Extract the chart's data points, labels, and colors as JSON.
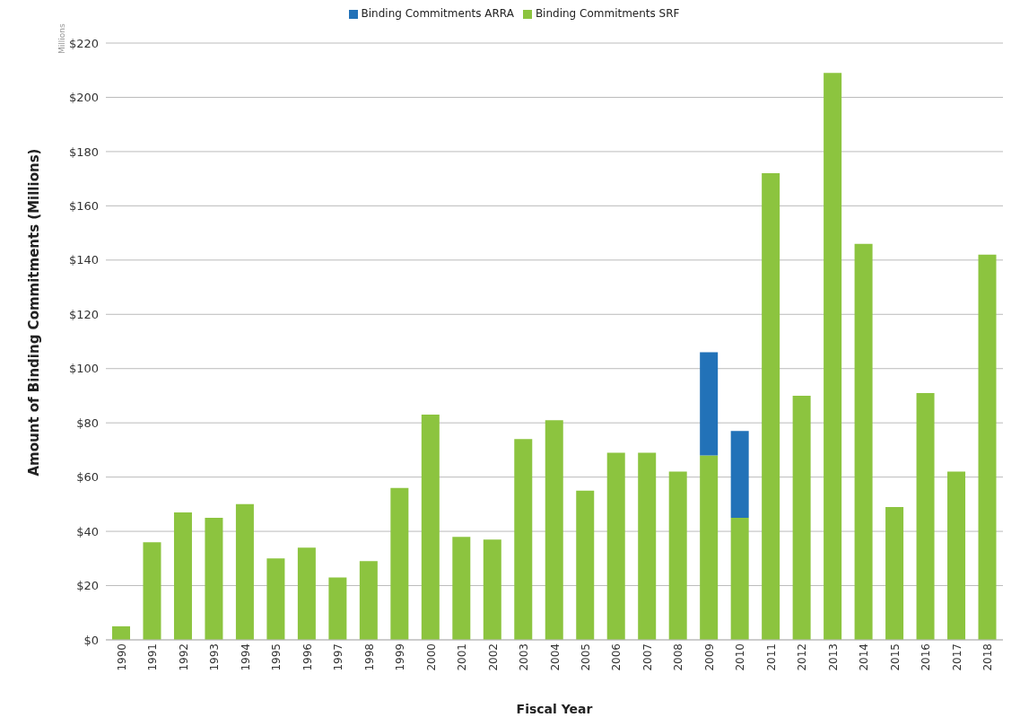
{
  "chart_data": {
    "type": "bar",
    "stacked": true,
    "xlabel": "Fiscal Year",
    "ylabel": "Amount of Binding Commitments (Millions)",
    "annotations": [
      "Millions"
    ],
    "categories": [
      "1990",
      "1991",
      "1992",
      "1993",
      "1994",
      "1995",
      "1996",
      "1997",
      "1998",
      "1999",
      "2000",
      "2001",
      "2002",
      "2003",
      "2004",
      "2005",
      "2006",
      "2007",
      "2008",
      "2009",
      "2010",
      "2011",
      "2012",
      "2013",
      "2014",
      "2015",
      "2016",
      "2017",
      "2018"
    ],
    "series": [
      {
        "name": "Binding Commitments SRF",
        "color": "#8cc43f",
        "values": [
          5,
          36,
          47,
          45,
          50,
          30,
          34,
          23,
          29,
          56,
          83,
          38,
          37,
          74,
          81,
          55,
          69,
          69,
          62,
          68,
          45,
          172,
          90,
          209,
          146,
          49,
          91,
          62,
          142
        ]
      },
      {
        "name": "Binding Commitments ARRA",
        "color": "#2272b8",
        "values": [
          null,
          null,
          null,
          null,
          null,
          null,
          null,
          null,
          null,
          null,
          null,
          null,
          null,
          null,
          null,
          null,
          null,
          null,
          null,
          38,
          32,
          null,
          null,
          null,
          null,
          null,
          null,
          null,
          null
        ]
      }
    ],
    "ylim": [
      0,
      220
    ],
    "yticks": [
      {
        "value": 0,
        "label": "$0"
      },
      {
        "value": 20,
        "label": "$20"
      },
      {
        "value": 40,
        "label": "$40"
      },
      {
        "value": 60,
        "label": "$60"
      },
      {
        "value": 80,
        "label": "$80"
      },
      {
        "value": 100,
        "label": "$100"
      },
      {
        "value": 120,
        "label": "$120"
      },
      {
        "value": 140,
        "label": "$140"
      },
      {
        "value": 160,
        "label": "$160"
      },
      {
        "value": 180,
        "label": "$180"
      },
      {
        "value": 200,
        "label": "$200"
      },
      {
        "value": 220,
        "label": "$220"
      }
    ],
    "grid": "y",
    "legend": "top"
  }
}
